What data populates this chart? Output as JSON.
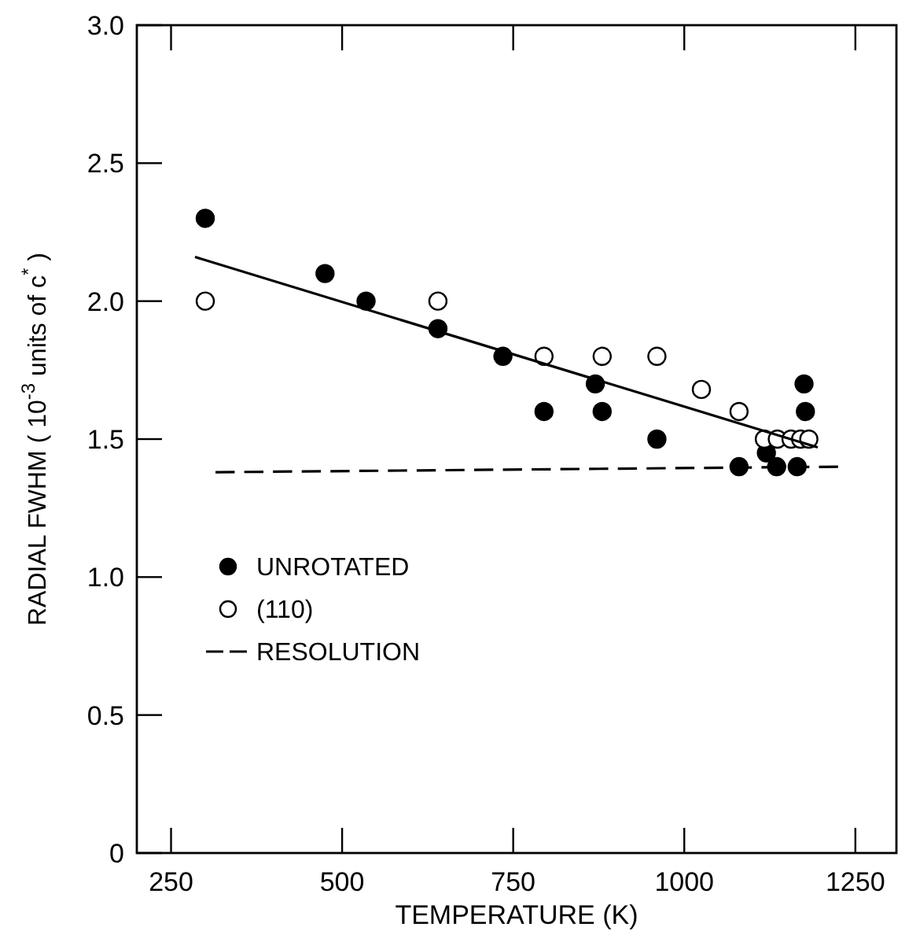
{
  "chart_data": {
    "type": "scatter",
    "xlabel": "TEMPERATURE (K)",
    "ylabel": "RADIAL FWHM (  10$^{-3}$ units of c$^{*}$ )",
    "xlim": [
      200,
      1310
    ],
    "xticks": [
      250,
      500,
      750,
      1000,
      1250
    ],
    "ylim": [
      0,
      3.0
    ],
    "yticks": [
      0,
      {
        "value": 0.5,
        "label": "0.5"
      },
      {
        "value": 1,
        "label": "1.0"
      },
      {
        "value": 1.5,
        "label": "1.5"
      },
      {
        "value": 2,
        "label": "2.0"
      },
      {
        "value": 2.5,
        "label": "2.5"
      },
      {
        "value": 3,
        "label": "3.0"
      }
    ],
    "grid": false,
    "legend": "bottom left",
    "series": [
      {
        "name": "UNROTATED",
        "marker": "circle",
        "color": "#000000",
        "x": [
          300,
          475,
          535,
          640,
          735,
          795,
          870,
          880,
          960,
          1080,
          1120,
          1135,
          1165,
          1175,
          1177
        ],
        "values": [
          2.3,
          2.1,
          2.0,
          1.9,
          1.8,
          1.6,
          1.7,
          1.6,
          1.5,
          1.4,
          1.45,
          1.4,
          1.4,
          1.7,
          1.6
        ]
      },
      {
        "name": "(110)",
        "marker": "circle",
        "color": "#ffffff",
        "x": [
          300,
          640,
          795,
          880,
          960,
          1025,
          1080,
          1117,
          1136,
          1156,
          1170,
          1182
        ],
        "values": [
          2.0,
          2.0,
          1.8,
          1.8,
          1.8,
          1.68,
          1.6,
          1.5,
          1.5,
          1.5,
          1.5,
          1.5
        ]
      },
      {
        "type": "line",
        "marker": "none",
        "line_style": "solid",
        "color": "#000000",
        "x": [
          285,
          1195
        ],
        "values": [
          2.16,
          1.47
        ]
      },
      {
        "name": "RESOLUTION",
        "type": "line",
        "marker": "none",
        "line_style": "dashed",
        "color": "#000000",
        "x": [
          315,
          1225
        ],
        "values": [
          1.38,
          1.4
        ]
      }
    ]
  }
}
